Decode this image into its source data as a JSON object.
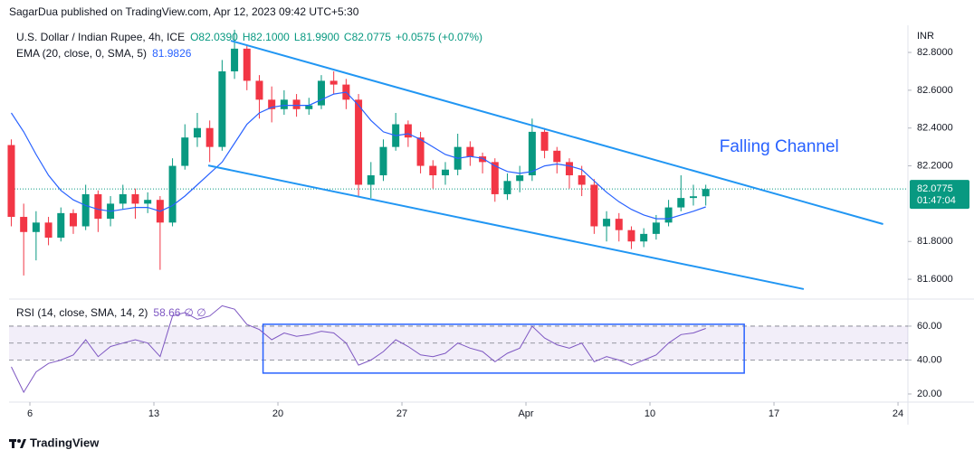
{
  "publisher": "SagarDua published on TradingView.com, Apr 12, 2023 09:42 UTC+5:30",
  "footer": "TradingView",
  "chart_data": [
    {
      "type": "candlestick",
      "title": "U.S. Dollar / Indian Rupee, 4h, ICE",
      "legend_values": [
        "O82.0390",
        "H82.1000",
        "L81.9900",
        "C82.0775",
        "+0.0575 (+0.07%)"
      ],
      "y_axis_label": "INR",
      "up_color": "#089981",
      "down_color": "#f23645",
      "x": [
        -0.75,
        -0.25,
        0.25,
        0.75,
        1.25,
        1.75,
        2.25,
        2.75,
        3.25,
        3.75,
        4.25,
        4.75,
        5.25,
        5.75,
        6.25,
        6.75,
        7.25,
        7.75,
        8.25,
        8.75,
        9.25,
        9.75,
        10.25,
        10.75,
        11.25,
        11.75,
        12.25,
        12.75,
        13.25,
        13.75,
        14.25,
        14.75,
        15.25,
        15.75,
        16.25,
        16.75,
        17.25,
        17.75,
        18.25,
        18.75,
        19.25,
        19.75,
        20.25,
        20.75,
        21.25,
        21.75,
        22.25,
        22.75,
        23.25,
        23.75,
        24.25,
        24.75,
        25.25,
        25.75,
        26.25,
        26.75,
        27.25
      ],
      "open": [
        82.31,
        81.93,
        81.85,
        81.9,
        81.82,
        81.95,
        81.88,
        82.05,
        81.92,
        82.0,
        82.05,
        82.0,
        82.02,
        81.9,
        82.2,
        82.35,
        82.4,
        82.3,
        82.7,
        82.82,
        82.65,
        82.55,
        82.5,
        82.55,
        82.5,
        82.52,
        82.65,
        82.63,
        82.55,
        82.1,
        82.15,
        82.3,
        82.42,
        82.35,
        82.2,
        82.15,
        82.18,
        82.3,
        82.25,
        82.22,
        82.05,
        82.12,
        82.15,
        82.38,
        82.28,
        82.22,
        82.15,
        82.1,
        81.88,
        81.92,
        81.86,
        81.8,
        81.84,
        81.9,
        81.98,
        82.03,
        82.039
      ],
      "high": [
        82.34,
        82.0,
        81.96,
        81.93,
        81.98,
        81.97,
        82.1,
        82.07,
        82.04,
        82.1,
        82.08,
        82.06,
        82.04,
        82.24,
        82.42,
        82.48,
        82.44,
        82.76,
        82.92,
        82.84,
        82.68,
        82.62,
        82.6,
        82.58,
        82.56,
        82.68,
        82.7,
        82.66,
        82.58,
        82.22,
        82.34,
        82.48,
        82.44,
        82.38,
        82.23,
        82.22,
        82.37,
        82.33,
        82.27,
        82.24,
        82.16,
        82.2,
        82.45,
        82.4,
        82.3,
        82.24,
        82.2,
        82.13,
        81.96,
        81.95,
        81.88,
        81.87,
        81.94,
        82.02,
        82.15,
        82.1,
        82.1
      ],
      "low": [
        81.88,
        81.62,
        81.7,
        81.78,
        81.8,
        81.84,
        81.86,
        81.85,
        81.88,
        81.97,
        81.92,
        81.95,
        81.65,
        81.88,
        82.18,
        82.3,
        82.22,
        82.28,
        82.66,
        82.6,
        82.45,
        82.43,
        82.47,
        82.46,
        82.47,
        82.5,
        82.58,
        82.5,
        82.04,
        82.03,
        82.12,
        82.28,
        82.3,
        82.16,
        82.08,
        82.1,
        82.15,
        82.2,
        82.16,
        82.01,
        82.02,
        82.06,
        82.12,
        82.24,
        82.16,
        82.08,
        82.04,
        81.84,
        81.8,
        81.8,
        81.76,
        81.77,
        81.81,
        81.88,
        81.96,
        81.99,
        81.99
      ],
      "close": [
        81.93,
        81.85,
        81.9,
        81.82,
        81.95,
        81.88,
        82.05,
        81.92,
        82.0,
        82.05,
        82.0,
        82.02,
        81.9,
        82.2,
        82.35,
        82.4,
        82.3,
        82.7,
        82.82,
        82.65,
        82.55,
        82.5,
        82.55,
        82.5,
        82.52,
        82.65,
        82.63,
        82.55,
        82.1,
        82.15,
        82.3,
        82.42,
        82.35,
        82.2,
        82.15,
        82.18,
        82.3,
        82.25,
        82.22,
        82.05,
        82.12,
        82.15,
        82.38,
        82.28,
        82.22,
        82.15,
        82.1,
        81.88,
        81.92,
        81.86,
        81.8,
        81.84,
        81.9,
        81.98,
        82.03,
        82.039,
        82.0775
      ],
      "last_value_label": "82.0775",
      "countdown": "01:47:04",
      "series": [
        {
          "name": "EMA (20, close, 0, SMA, 5)",
          "value_label": "81.9826",
          "color": "#2962ff",
          "values": [
            82.48,
            82.38,
            82.26,
            82.15,
            82.07,
            82.02,
            81.99,
            81.97,
            81.96,
            81.97,
            81.98,
            81.98,
            81.96,
            81.99,
            82.04,
            82.1,
            82.16,
            82.22,
            82.32,
            82.42,
            82.48,
            82.51,
            82.52,
            82.52,
            82.52,
            82.55,
            82.58,
            82.59,
            82.52,
            82.44,
            82.38,
            82.36,
            82.37,
            82.34,
            82.3,
            82.26,
            82.24,
            82.25,
            82.24,
            82.2,
            82.17,
            82.16,
            82.17,
            82.2,
            82.21,
            82.2,
            82.18,
            82.12,
            82.06,
            82.01,
            81.97,
            81.94,
            81.92,
            81.92,
            81.94,
            81.96,
            81.9826
          ]
        }
      ],
      "lines": [
        {
          "color": "#2196f3",
          "x": [
            8.1,
            34.4
          ],
          "y": [
            82.862,
            81.892
          ]
        },
        {
          "color": "#2196f3",
          "x": [
            7.19,
            31.2
          ],
          "y": [
            82.202,
            81.548
          ]
        }
      ],
      "annotation": {
        "text": "Falling Channel",
        "color": "#2962ff",
        "x": 27.8,
        "y": 82.298
      },
      "xlim": [
        -0.84,
        35.4
      ],
      "xticks": [
        {
          "value": 0,
          "label": "6"
        },
        {
          "value": 5,
          "label": "13"
        },
        {
          "value": 10,
          "label": "20"
        },
        {
          "value": 15,
          "label": "27"
        },
        {
          "value": 20,
          "label": "Apr"
        },
        {
          "value": 25,
          "label": "10"
        },
        {
          "value": 30,
          "label": "17"
        },
        {
          "value": 35,
          "label": "24"
        }
      ],
      "ylim": [
        81.5,
        82.934
      ],
      "yticks": [
        {
          "value": 82.8,
          "label": "82.8000"
        },
        {
          "value": 82.6,
          "label": "82.6000"
        },
        {
          "value": 82.4,
          "label": "82.4000"
        },
        {
          "value": 82.2,
          "label": "82.2000"
        },
        {
          "value": 81.8,
          "label": "81.8000"
        },
        {
          "value": 81.6,
          "label": "81.6000"
        }
      ]
    },
    {
      "type": "line",
      "title": "RSI (14, close, SMA, 14, 2)",
      "value_label": "58.66",
      "extra_label": "∅ ∅",
      "series": [
        {
          "name": "RSI",
          "color": "#7e57c2",
          "values": [
            36,
            21,
            33,
            38,
            40,
            43,
            52,
            42,
            48,
            50,
            52,
            50,
            42,
            66,
            68,
            64,
            66,
            72,
            70,
            61,
            58,
            52,
            56,
            54,
            55,
            57,
            56,
            50,
            37,
            40,
            45,
            52,
            48,
            43,
            42,
            44,
            50,
            47,
            45,
            39,
            44,
            47,
            60,
            53,
            49,
            47,
            50,
            39,
            42,
            40,
            37,
            40,
            43,
            50,
            55,
            56,
            58.66
          ]
        }
      ],
      "band": [
        40,
        60
      ],
      "levels": [
        60,
        50,
        40
      ],
      "box": {
        "color": "#2962ff",
        "x": [
          9.4,
          28.8
        ],
        "y": [
          32.3,
          61.1
        ]
      },
      "ylim": [
        15.2,
        74.9
      ],
      "yticks": [
        {
          "value": 60,
          "label": "60.00"
        },
        {
          "value": 40,
          "label": "40.00"
        },
        {
          "value": 20,
          "label": "20.00"
        }
      ]
    }
  ]
}
